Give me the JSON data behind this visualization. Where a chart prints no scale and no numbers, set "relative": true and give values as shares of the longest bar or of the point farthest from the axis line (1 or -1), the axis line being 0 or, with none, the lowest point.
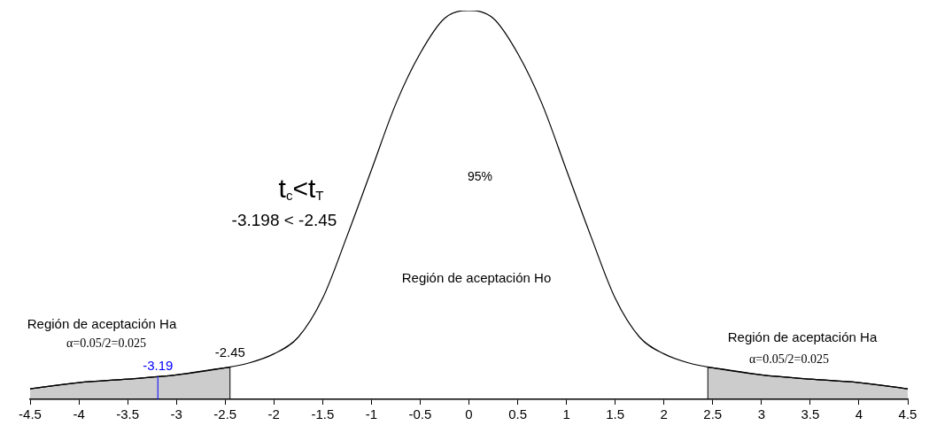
{
  "chart_data": {
    "type": "line",
    "relative": true,
    "x": [
      -4.5,
      -4,
      -3.5,
      -3,
      -2.5,
      -2.25,
      -2,
      -1.75,
      -1.5,
      -1.25,
      -1,
      -0.75,
      -0.5,
      -0.25,
      0,
      0.25,
      0.5,
      0.75,
      1,
      1.25,
      1.5,
      1.75,
      2,
      2.25,
      2.5,
      3,
      3.5,
      4,
      4.5
    ],
    "series": [
      {
        "color": "#000000",
        "values": [
          0.027,
          0.043,
          0.052,
          0.063,
          0.081,
          0.094,
          0.117,
          0.16,
          0.26,
          0.42,
          0.59,
          0.76,
          0.89,
          0.98,
          1,
          0.98,
          0.89,
          0.76,
          0.59,
          0.42,
          0.26,
          0.16,
          0.117,
          0.094,
          0.081,
          0.063,
          0.052,
          0.043,
          0.027
        ]
      },
      {
        "type": "area",
        "color": "#000000",
        "x": [
          -4.5,
          -4,
          -3.5,
          -3,
          -2.5,
          -2.45
        ],
        "values": [
          0.027,
          0.043,
          0.052,
          0.063,
          0.081,
          0.082
        ]
      },
      {
        "type": "area",
        "color": "#000000",
        "x": [
          2.45,
          2.5,
          3,
          3.5,
          4,
          4.5
        ],
        "values": [
          0.082,
          0.081,
          0.063,
          0.052,
          0.043,
          0.027
        ]
      }
    ],
    "xlim": [
      -4.5,
      4.5
    ],
    "xticks": [
      -4.5,
      -4,
      -3.5,
      -3,
      -2.5,
      -2,
      -1.5,
      -1,
      -0.5,
      0,
      0.5,
      1,
      1.5,
      2,
      2.5,
      3,
      3.5,
      4,
      4.5
    ],
    "ref_lines": [
      {
        "axis": "x",
        "value": -3.19,
        "label": "-3.19",
        "color": "#0000ff"
      },
      {
        "axis": "x",
        "value": -2.45,
        "label": "-2.45",
        "color": "#000000"
      },
      {
        "axis": "x",
        "value": 2.45,
        "color": "#000000"
      }
    ],
    "annotations": [
      "t$_{c}$<t$_{T}$",
      "-3.198 < -2.45",
      "95%",
      "Región de aceptación Ho",
      "Región de aceptación Ha",
      "α=0.05/2=0.025",
      "Región de aceptación Ha",
      "α=0.05/2=0.025"
    ],
    "grid": false,
    "legend": false,
    "marker": "none",
    "line_style": "solid"
  }
}
